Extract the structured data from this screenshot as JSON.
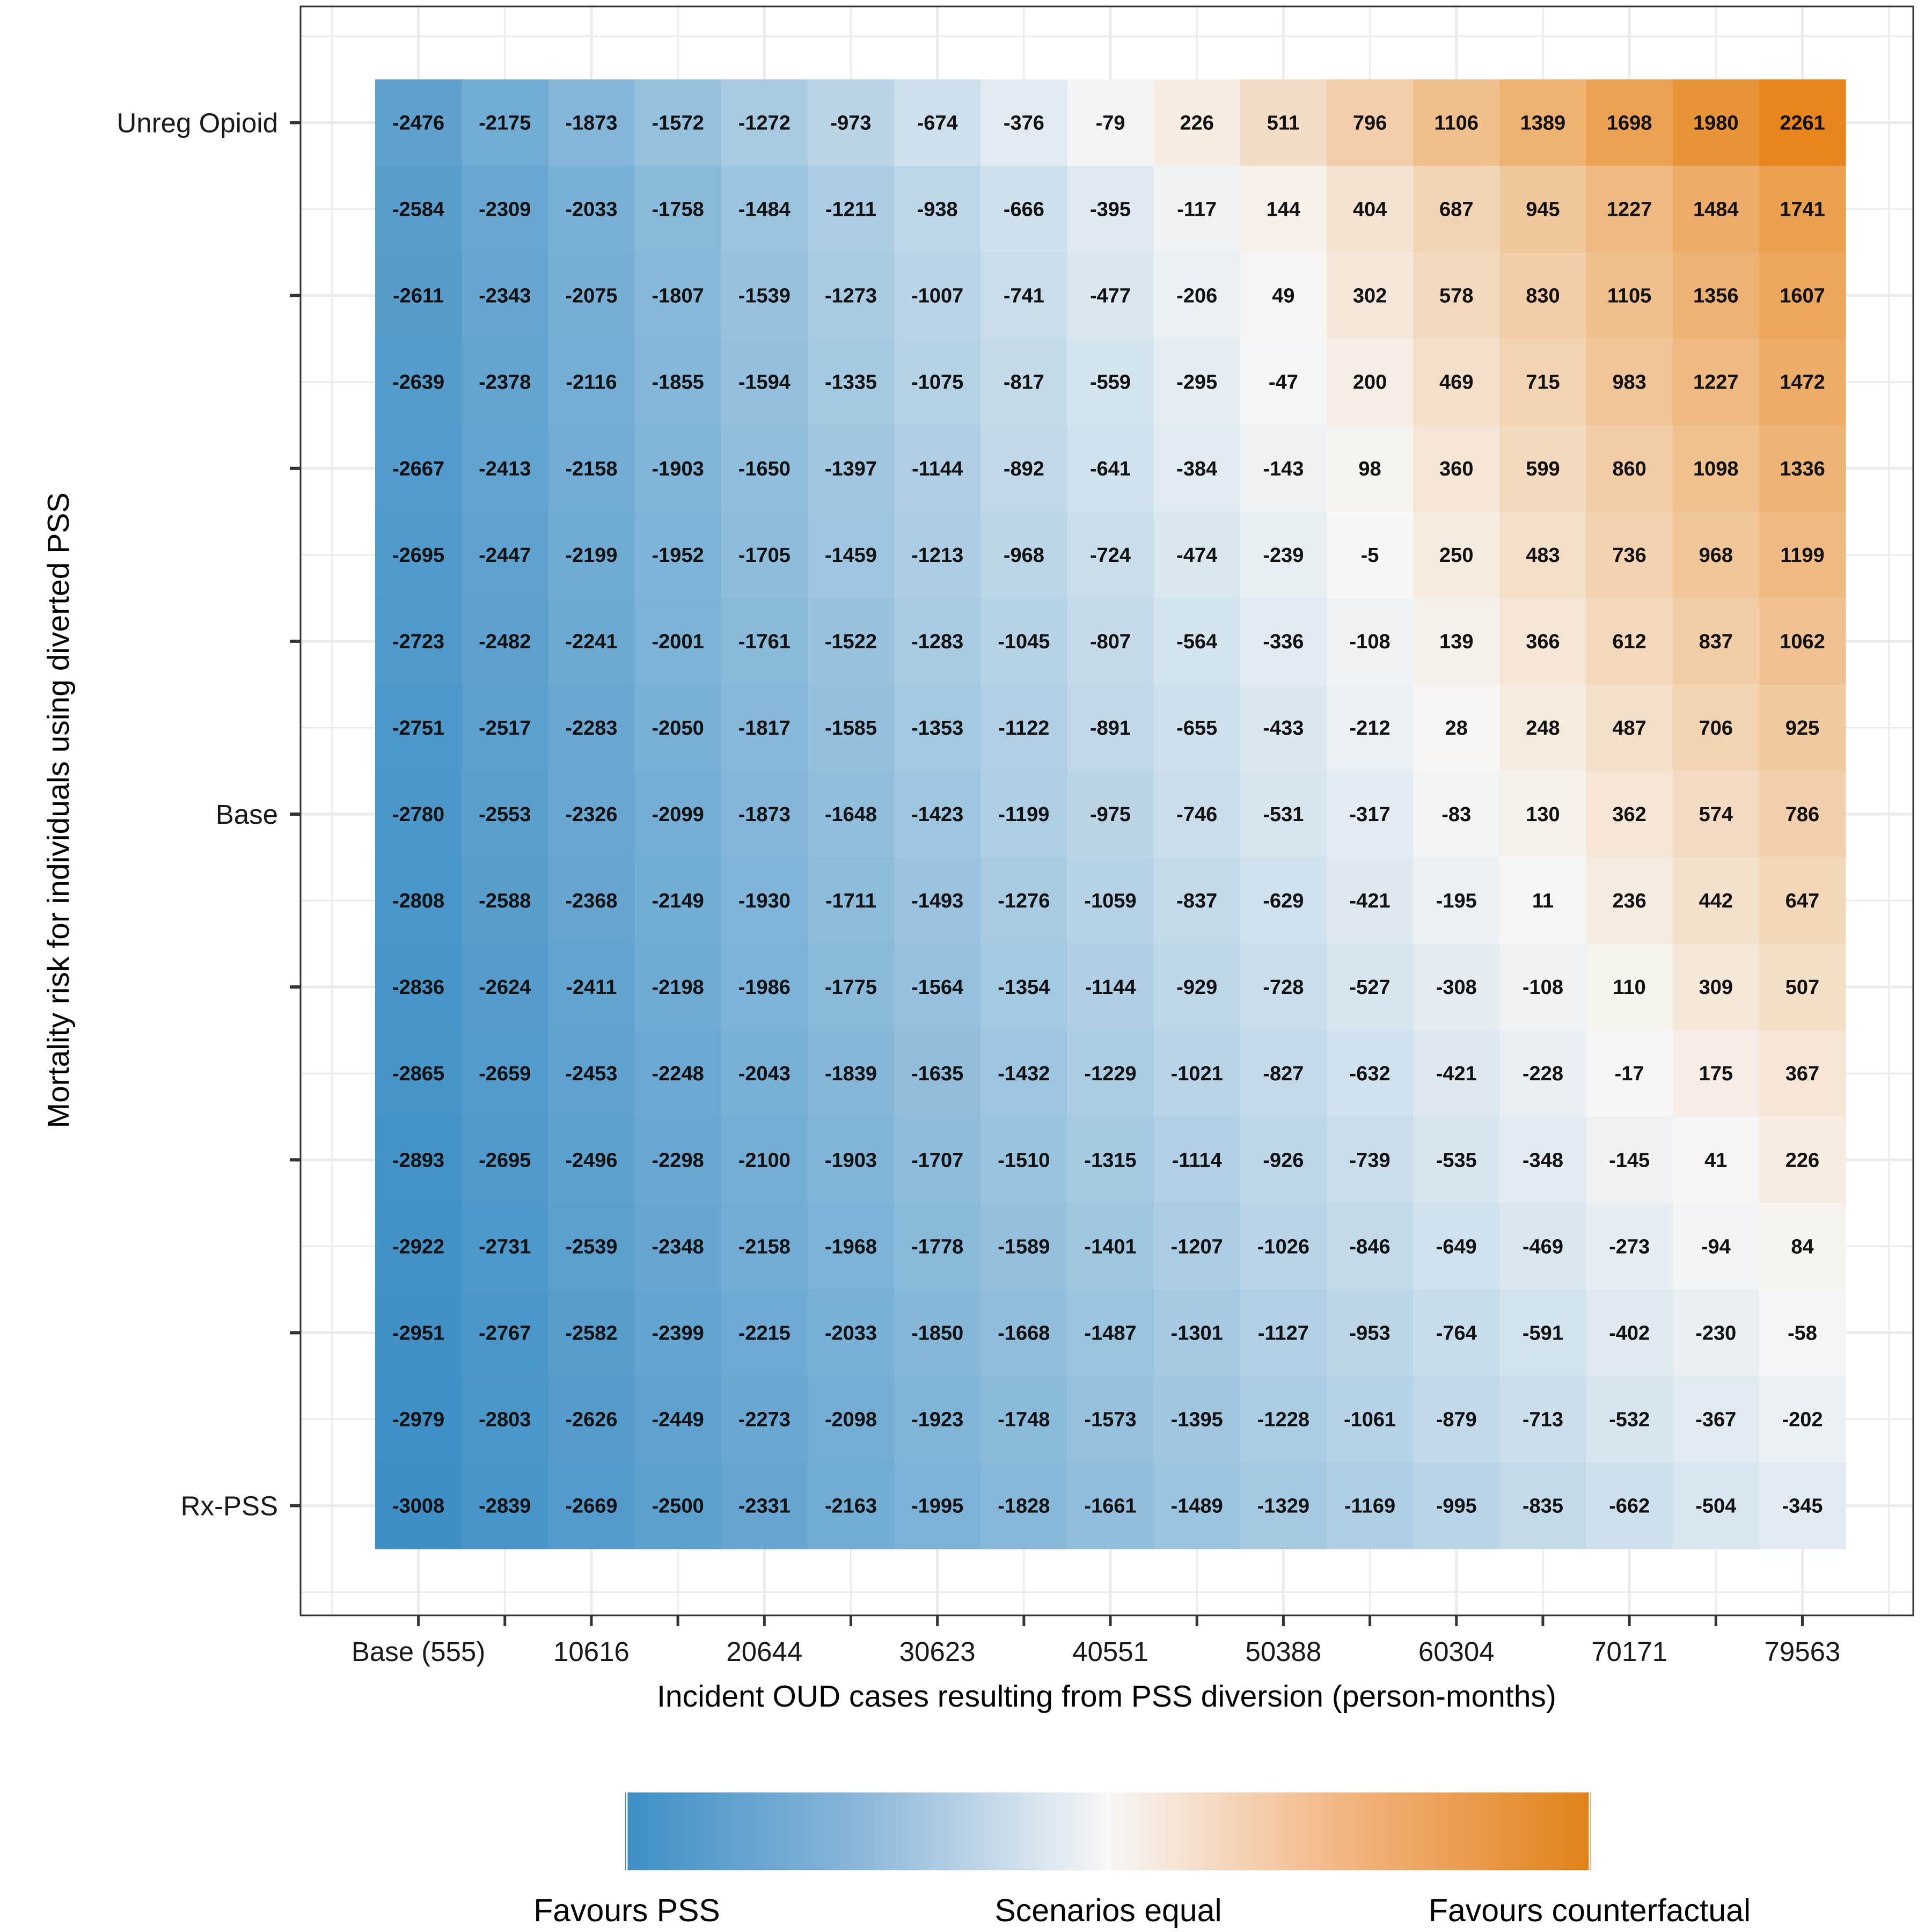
{
  "chart_data": {
    "type": "heatmap",
    "title": "",
    "xlabel": "Incident OUD cases resulting from PSS diversion (person-months)",
    "ylabel": "Mortality risk for individuals using diverted PSS",
    "x_tick_labels": [
      "Base (555)",
      "10616",
      "20644",
      "30623",
      "40551",
      "50388",
      "60304",
      "70171",
      "79563"
    ],
    "y_tick_labels": [
      "Unreg Opioid",
      "Base",
      "Rx-PSS"
    ],
    "n_cols": 17,
    "n_rows": 17,
    "grid": true,
    "values": [
      [
        -2476,
        -2175,
        -1873,
        -1572,
        -1272,
        -973,
        -674,
        -376,
        -79,
        226,
        511,
        796,
        1106,
        1389,
        1698,
        1980,
        2261
      ],
      [
        -2584,
        -2309,
        -2033,
        -1758,
        -1484,
        -1211,
        -938,
        -666,
        -395,
        -117,
        144,
        404,
        687,
        945,
        1227,
        1484,
        1741
      ],
      [
        -2611,
        -2343,
        -2075,
        -1807,
        -1539,
        -1273,
        -1007,
        -741,
        -477,
        -206,
        49,
        302,
        578,
        830,
        1105,
        1356,
        1607
      ],
      [
        -2639,
        -2378,
        -2116,
        -1855,
        -1594,
        -1335,
        -1075,
        -817,
        -559,
        -295,
        -47,
        200,
        469,
        715,
        983,
        1227,
        1472
      ],
      [
        -2667,
        -2413,
        -2158,
        -1903,
        -1650,
        -1397,
        -1144,
        -892,
        -641,
        -384,
        -143,
        98,
        360,
        599,
        860,
        1098,
        1336
      ],
      [
        -2695,
        -2447,
        -2199,
        -1952,
        -1705,
        -1459,
        -1213,
        -968,
        -724,
        -474,
        -239,
        -5,
        250,
        483,
        736,
        968,
        1199
      ],
      [
        -2723,
        -2482,
        -2241,
        -2001,
        -1761,
        -1522,
        -1283,
        -1045,
        -807,
        -564,
        -336,
        -108,
        139,
        366,
        612,
        837,
        1062
      ],
      [
        -2751,
        -2517,
        -2283,
        -2050,
        -1817,
        -1585,
        -1353,
        -1122,
        -891,
        -655,
        -433,
        -212,
        28,
        248,
        487,
        706,
        925
      ],
      [
        -2780,
        -2553,
        -2326,
        -2099,
        -1873,
        -1648,
        -1423,
        -1199,
        -975,
        -746,
        -531,
        -317,
        -83,
        130,
        362,
        574,
        786
      ],
      [
        -2808,
        -2588,
        -2368,
        -2149,
        -1930,
        -1711,
        -1493,
        -1276,
        -1059,
        -837,
        -629,
        -421,
        -195,
        11,
        236,
        442,
        647
      ],
      [
        -2836,
        -2624,
        -2411,
        -2198,
        -1986,
        -1775,
        -1564,
        -1354,
        -1144,
        -929,
        -728,
        -527,
        -308,
        -108,
        110,
        309,
        507
      ],
      [
        -2865,
        -2659,
        -2453,
        -2248,
        -2043,
        -1839,
        -1635,
        -1432,
        -1229,
        -1021,
        -827,
        -632,
        -421,
        -228,
        -17,
        175,
        367
      ],
      [
        -2893,
        -2695,
        -2496,
        -2298,
        -2100,
        -1903,
        -1707,
        -1510,
        -1315,
        -1114,
        -926,
        -739,
        -535,
        -348,
        -145,
        41,
        226
      ],
      [
        -2922,
        -2731,
        -2539,
        -2348,
        -2158,
        -1968,
        -1778,
        -1589,
        -1401,
        -1207,
        -1026,
        -846,
        -649,
        -469,
        -273,
        -94,
        84
      ],
      [
        -2951,
        -2767,
        -2582,
        -2399,
        -2215,
        -2033,
        -1850,
        -1668,
        -1487,
        -1301,
        -1127,
        -953,
        -764,
        -591,
        -402,
        -230,
        -58
      ],
      [
        -2979,
        -2803,
        -2626,
        -2449,
        -2273,
        -2098,
        -1923,
        -1748,
        -1573,
        -1395,
        -1228,
        -1061,
        -879,
        -713,
        -532,
        -367,
        -202
      ],
      [
        -3008,
        -2839,
        -2669,
        -2500,
        -2331,
        -2163,
        -1995,
        -1828,
        -1661,
        -1489,
        -1329,
        -1169,
        -995,
        -835,
        -662,
        -504,
        -345
      ]
    ],
    "color_scale": {
      "type": "diverging",
      "low": "#3d8fc6",
      "mid": "#f7f7f7",
      "high": "#e8861d",
      "min": -3008,
      "max": 2261
    },
    "legend": {
      "position": "bottom",
      "labels": [
        "Favours PSS",
        "Scenarios equal",
        "Favours counterfactual"
      ]
    }
  }
}
